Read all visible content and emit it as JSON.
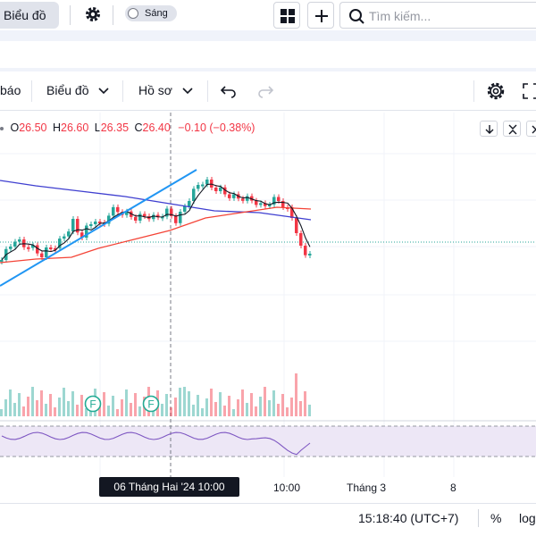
{
  "topbar": {
    "chart_button": "Biểu đồ",
    "theme_toggle_label": "Sáng",
    "search_placeholder": "Tìm kiếm..."
  },
  "toolbar": {
    "alerts_label": "báo",
    "chart_menu_label": "Biểu đồ",
    "profile_menu_label": "Hồ sơ"
  },
  "legend": {
    "open_key": "O",
    "open": "26.50",
    "high_key": "H",
    "high": "26.60",
    "low_key": "L",
    "low": "26.35",
    "close_key": "C",
    "close": "26.40",
    "change": "−0.10 (−0.38%)"
  },
  "xaxis": {
    "tick_1000": "10:00",
    "tick_month": "Tháng 3",
    "tick_8": "8",
    "crosshair_date": "06 Tháng Hai '24   10:00"
  },
  "event_markers": [
    "F",
    "F"
  ],
  "statusbar": {
    "clock": "15:18:40 (UTC+7)",
    "percent": "%",
    "log": "log"
  },
  "colors": {
    "up": "#26a69a",
    "down": "#f23645",
    "trend_line": "#2196f3",
    "ma_long": "#3f3fd0",
    "ma_mid": "#f44336",
    "ma_short": "#131722",
    "rsi": "#7e57c2",
    "rsi_band": "#ede7f6"
  },
  "icons": [
    "gear-icon",
    "layout-grid-icon",
    "plus-icon",
    "search-icon",
    "chevron-down-icon",
    "undo-icon",
    "redo-icon",
    "settings-icon",
    "fullscreen-icon",
    "arrow-down-icon",
    "collapse-icon",
    "close-icon"
  ]
}
